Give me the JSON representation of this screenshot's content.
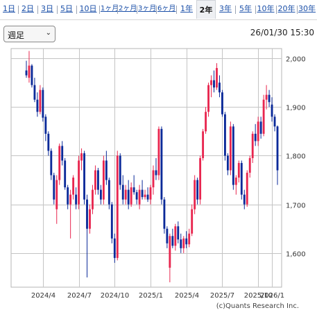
{
  "tabs": [
    {
      "label": "1日"
    },
    {
      "label": "2日"
    },
    {
      "label": "3日"
    },
    {
      "label": "5日"
    },
    {
      "label": "10日"
    },
    {
      "label": "1ヶ月"
    },
    {
      "label": "2ヶ月"
    },
    {
      "label": "3ヶ月"
    },
    {
      "label": "6ヶ月"
    },
    {
      "label": "1年"
    },
    {
      "label": "2年",
      "active": true
    },
    {
      "label": "3年"
    },
    {
      "label": "5年"
    },
    {
      "label": "10年"
    },
    {
      "label": "20年"
    },
    {
      "label": "30年"
    }
  ],
  "period_select": {
    "value": "週足"
  },
  "timestamp": "26/01/30 15:30",
  "credit": "(c)Quants Research Inc.",
  "colors": {
    "up": "#e8264f",
    "down": "#0b2a99",
    "grid": "#c4c4c4",
    "link": "#1a4fa8"
  },
  "chart_data": {
    "type": "candlestick",
    "x_tick_labels": [
      "2024/4",
      "2024/7",
      "2024/10",
      "2025/1",
      "2025/4",
      "2025/7",
      "2025/10",
      "2026/1"
    ],
    "y_tick_labels": [
      "2,000",
      "1,900",
      "1,800",
      "1,700",
      "1,600"
    ],
    "y_ticks": [
      2000,
      1900,
      1800,
      1700,
      1600
    ],
    "ylim": [
      1530,
      2020
    ],
    "grid": true,
    "candles": [
      [
        1975,
        1995,
        1960,
        1965
      ],
      [
        1960,
        2015,
        1950,
        1985
      ],
      [
        1985,
        1988,
        1940,
        1945
      ],
      [
        1945,
        1960,
        1910,
        1915
      ],
      [
        1915,
        1930,
        1880,
        1890
      ],
      [
        1890,
        1945,
        1885,
        1935
      ],
      [
        1935,
        1940,
        1870,
        1878
      ],
      [
        1880,
        1885,
        1830,
        1845
      ],
      [
        1845,
        1850,
        1800,
        1810
      ],
      [
        1810,
        1815,
        1750,
        1760
      ],
      [
        1760,
        1765,
        1700,
        1710
      ],
      [
        1690,
        1760,
        1660,
        1750
      ],
      [
        1750,
        1825,
        1740,
        1820
      ],
      [
        1820,
        1830,
        1780,
        1790
      ],
      [
        1790,
        1795,
        1730,
        1735
      ],
      [
        1735,
        1740,
        1690,
        1700
      ],
      [
        1700,
        1730,
        1630,
        1720
      ],
      [
        1720,
        1760,
        1710,
        1755
      ],
      [
        1720,
        1735,
        1690,
        1700
      ],
      [
        1700,
        1800,
        1690,
        1790
      ],
      [
        1790,
        1815,
        1770,
        1805
      ],
      [
        1805,
        1810,
        1700,
        1710
      ],
      [
        1710,
        1720,
        1550,
        1650
      ],
      [
        1650,
        1700,
        1640,
        1690
      ],
      [
        1690,
        1740,
        1680,
        1730
      ],
      [
        1730,
        1780,
        1720,
        1770
      ],
      [
        1770,
        1775,
        1720,
        1730
      ],
      [
        1730,
        1740,
        1700,
        1710
      ],
      [
        1710,
        1800,
        1700,
        1790
      ],
      [
        1790,
        1810,
        1740,
        1750
      ],
      [
        1750,
        1755,
        1690,
        1700
      ],
      [
        1700,
        1705,
        1620,
        1630
      ],
      [
        1630,
        1640,
        1580,
        1590
      ],
      [
        1590,
        1810,
        1585,
        1800
      ],
      [
        1800,
        1805,
        1730,
        1740
      ],
      [
        1740,
        1760,
        1700,
        1710
      ],
      [
        1710,
        1740,
        1700,
        1730
      ],
      [
        1730,
        1750,
        1690,
        1700
      ],
      [
        1700,
        1745,
        1695,
        1735
      ],
      [
        1735,
        1760,
        1720,
        1725
      ],
      [
        1725,
        1730,
        1700,
        1710
      ],
      [
        1700,
        1740,
        1690,
        1730
      ],
      [
        1730,
        1750,
        1710,
        1715
      ],
      [
        1715,
        1730,
        1710,
        1720
      ],
      [
        1720,
        1735,
        1705,
        1710
      ],
      [
        1710,
        1740,
        1700,
        1735
      ],
      [
        1735,
        1780,
        1720,
        1770
      ],
      [
        1770,
        1795,
        1750,
        1760
      ],
      [
        1760,
        1860,
        1750,
        1855
      ],
      [
        1855,
        1860,
        1700,
        1710
      ],
      [
        1710,
        1715,
        1640,
        1650
      ],
      [
        1650,
        1655,
        1610,
        1620
      ],
      [
        1570,
        1640,
        1540,
        1635
      ],
      [
        1635,
        1650,
        1610,
        1615
      ],
      [
        1615,
        1660,
        1605,
        1655
      ],
      [
        1655,
        1665,
        1620,
        1628
      ],
      [
        1628,
        1640,
        1600,
        1610
      ],
      [
        1610,
        1635,
        1600,
        1630
      ],
      [
        1630,
        1645,
        1610,
        1618
      ],
      [
        1618,
        1650,
        1612,
        1640
      ],
      [
        1640,
        1700,
        1635,
        1690
      ],
      [
        1690,
        1760,
        1680,
        1750
      ],
      [
        1750,
        1755,
        1700,
        1710
      ],
      [
        1710,
        1800,
        1700,
        1795
      ],
      [
        1795,
        1855,
        1790,
        1850
      ],
      [
        1850,
        1900,
        1845,
        1890
      ],
      [
        1890,
        1950,
        1880,
        1945
      ],
      [
        1945,
        1965,
        1920,
        1955
      ],
      [
        1955,
        1975,
        1930,
        1940
      ],
      [
        1940,
        1990,
        1935,
        1980
      ],
      [
        1950,
        1965,
        1920,
        1930
      ],
      [
        1930,
        1935,
        1880,
        1885
      ],
      [
        1885,
        1890,
        1790,
        1800
      ],
      [
        1800,
        1805,
        1760,
        1770
      ],
      [
        1770,
        1870,
        1760,
        1860
      ],
      [
        1860,
        1865,
        1730,
        1740
      ],
      [
        1740,
        1760,
        1720,
        1755
      ],
      [
        1755,
        1790,
        1745,
        1785
      ],
      [
        1785,
        1790,
        1710,
        1720
      ],
      [
        1720,
        1730,
        1690,
        1700
      ],
      [
        1700,
        1770,
        1695,
        1765
      ],
      [
        1765,
        1800,
        1755,
        1795
      ],
      [
        1795,
        1850,
        1785,
        1845
      ],
      [
        1845,
        1865,
        1820,
        1830
      ],
      [
        1830,
        1880,
        1820,
        1870
      ],
      [
        1870,
        1880,
        1835,
        1845
      ],
      [
        1845,
        1925,
        1840,
        1915
      ],
      [
        1915,
        1945,
        1895,
        1925
      ],
      [
        1925,
        1935,
        1900,
        1910
      ],
      [
        1905,
        1920,
        1870,
        1880
      ],
      [
        1880,
        1885,
        1850,
        1860
      ],
      [
        1860,
        1862,
        1740,
        1770
      ]
    ]
  }
}
